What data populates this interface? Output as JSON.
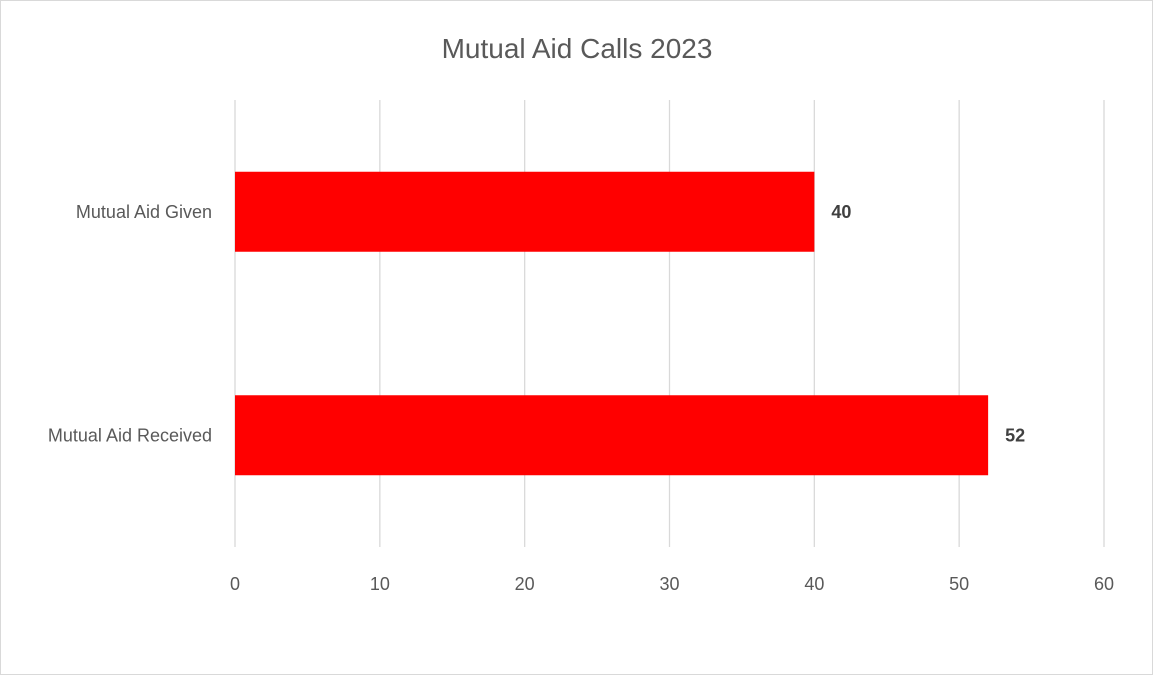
{
  "chart_data": {
    "type": "bar",
    "orientation": "horizontal",
    "title": "Mutual Aid Calls 2023",
    "categories": [
      "Mutual Aid Given",
      "Mutual Aid Received"
    ],
    "values": [
      40,
      52
    ],
    "data_labels": [
      "40",
      "52"
    ],
    "xlim": [
      0,
      60
    ],
    "x_ticks": [
      0,
      10,
      20,
      30,
      40,
      50,
      60
    ],
    "x_tick_labels": [
      "0",
      "10",
      "20",
      "30",
      "40",
      "50",
      "60"
    ],
    "grid": true,
    "legend": "none",
    "bar_color": "#ff0000",
    "grid_color": "#d9d9d9",
    "text_color": "#595959",
    "label_color": "#404040"
  }
}
